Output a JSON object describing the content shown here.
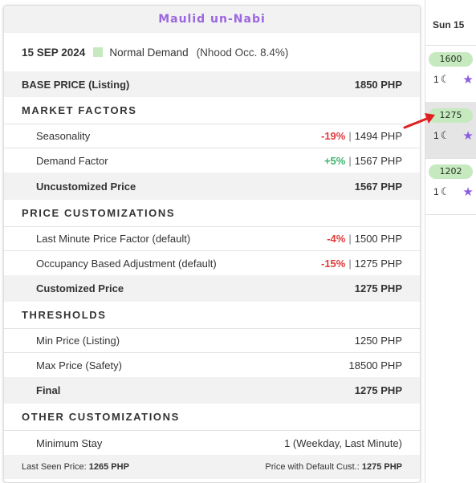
{
  "calendar": {
    "day_header": "Sun 15",
    "cells": [
      {
        "price": "1600",
        "nights": "1"
      },
      {
        "price": "1275",
        "nights": "1"
      },
      {
        "price": "1202",
        "nights": "1"
      }
    ]
  },
  "popup": {
    "title": "Maulid un-Nabi",
    "date": "15 SEP 2024",
    "demand_label": "Normal Demand",
    "occupancy": "(Nhood Occ. 8.4%)",
    "base_price": {
      "label": "BASE PRICE (Listing)",
      "value": "1850 PHP"
    },
    "market_factors": {
      "heading": "MARKET FACTORS",
      "seasonality": {
        "label": "Seasonality",
        "pct": "-19%",
        "value": "1494 PHP"
      },
      "demand": {
        "label": "Demand Factor",
        "pct": "+5%",
        "value": "1567 PHP"
      },
      "subtotal": {
        "label": "Uncustomized Price",
        "value": "1567 PHP"
      }
    },
    "price_customizations": {
      "heading": "PRICE CUSTOMIZATIONS",
      "last_minute": {
        "label": "Last Minute Price Factor (default)",
        "pct": "-4%",
        "value": "1500 PHP"
      },
      "occupancy_adj": {
        "label": "Occupancy Based Adjustment (default)",
        "pct": "-15%",
        "value": "1275 PHP"
      },
      "subtotal": {
        "label": "Customized Price",
        "value": "1275 PHP"
      }
    },
    "thresholds": {
      "heading": "THRESHOLDS",
      "min": {
        "label": "Min Price (Listing)",
        "value": "1250 PHP"
      },
      "max": {
        "label": "Max Price (Safety)",
        "value": "18500 PHP"
      },
      "final": {
        "label": "Final",
        "value": "1275 PHP"
      }
    },
    "other": {
      "heading": "OTHER CUSTOMIZATIONS",
      "min_stay": {
        "label": "Minimum Stay",
        "value": "1 (Weekday, Last Minute)"
      }
    },
    "footer": {
      "last_seen_label": "Last Seen Price:",
      "last_seen_value": "1265 PHP",
      "default_cust_label": "Price with Default Cust.:",
      "default_cust_value": "1275 PHP"
    }
  },
  "colors": {
    "title": "#9b66e0",
    "negative": "#e03a3a",
    "positive": "#3bb56a",
    "demand_swatch": "#c7e9c0",
    "arrow": "#e02020"
  }
}
